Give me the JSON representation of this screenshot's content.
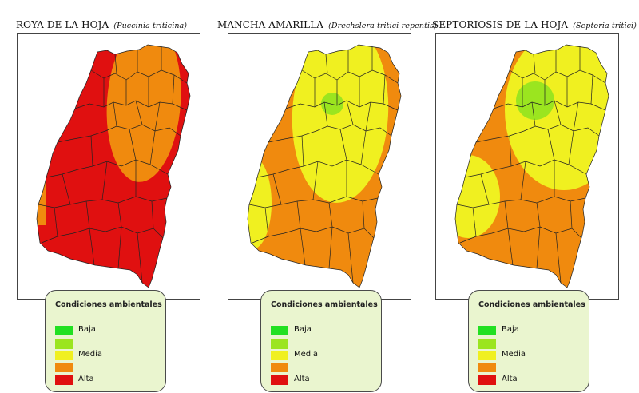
{
  "colors": {
    "baja": "#22e022",
    "baja_media": "#9be51f",
    "media": "#f0f020",
    "media_alta": "#f08a0e",
    "alta": "#e01010",
    "border": "#222222",
    "legend_bg": "#eaf5cf"
  },
  "panels": [
    {
      "title": "ROYA DE LA HOJA",
      "species": "(Puccinia triticina)",
      "legend": {
        "title": "Condiciones ambientales",
        "items": [
          {
            "label": "Baja",
            "color": "#22e022"
          },
          {
            "label": "",
            "color": "#9be51f"
          },
          {
            "label": "Media",
            "color": "#f0f020"
          },
          {
            "label": "",
            "color": "#f08a0e"
          },
          {
            "label": "Alta",
            "color": "#e01010"
          }
        ]
      }
    },
    {
      "title": "MANCHA AMARILLA",
      "species": "(Drechslera tritici-repentis)",
      "legend": {
        "title": "Condiciones ambientales",
        "items": [
          {
            "label": "Baja",
            "color": "#22e022"
          },
          {
            "label": "",
            "color": "#9be51f"
          },
          {
            "label": "Media",
            "color": "#f0f020"
          },
          {
            "label": "",
            "color": "#f08a0e"
          },
          {
            "label": "Alta",
            "color": "#e01010"
          }
        ]
      }
    },
    {
      "title": "SEPTORIOSIS DE LA HOJA",
      "species": "(Septoria tritici)",
      "legend": {
        "title": "Condiciones ambientales",
        "items": [
          {
            "label": "Baja",
            "color": "#22e022"
          },
          {
            "label": "",
            "color": "#9be51f"
          },
          {
            "label": "Media",
            "color": "#f0f020"
          },
          {
            "label": "",
            "color": "#f08a0e"
          },
          {
            "label": "Alta",
            "color": "#e01010"
          }
        ]
      }
    }
  ]
}
